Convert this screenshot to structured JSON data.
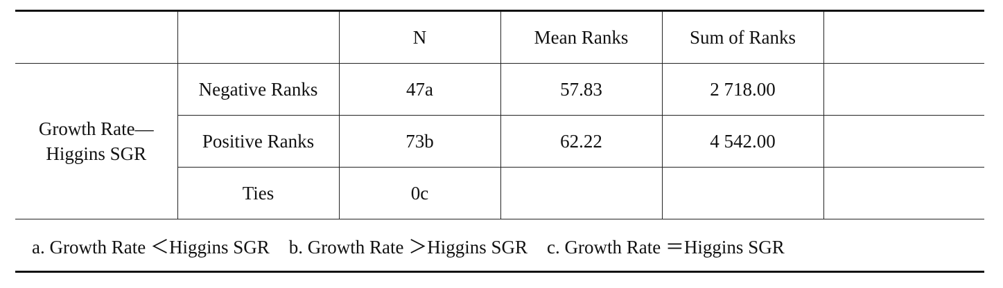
{
  "table": {
    "header": [
      "N",
      "Mean Ranks",
      "Sum of Ranks"
    ],
    "group_label": [
      "Growth Rate—",
      "Higgins SGR"
    ],
    "rows": [
      {
        "label": "Negative Ranks",
        "n": "47a",
        "mean": "57.83",
        "sum": "2 718.00"
      },
      {
        "label": "Positive Ranks",
        "n": "73b",
        "mean": "62.22",
        "sum": "4 542.00"
      },
      {
        "label": "Ties",
        "n": "0c"
      }
    ],
    "notes": [
      "a. Growth Rate ＜Higgins SGR",
      "b. Growth Rate ＞Higgins SGR",
      "c. Growth Rate ＝Higgins SGR"
    ]
  }
}
